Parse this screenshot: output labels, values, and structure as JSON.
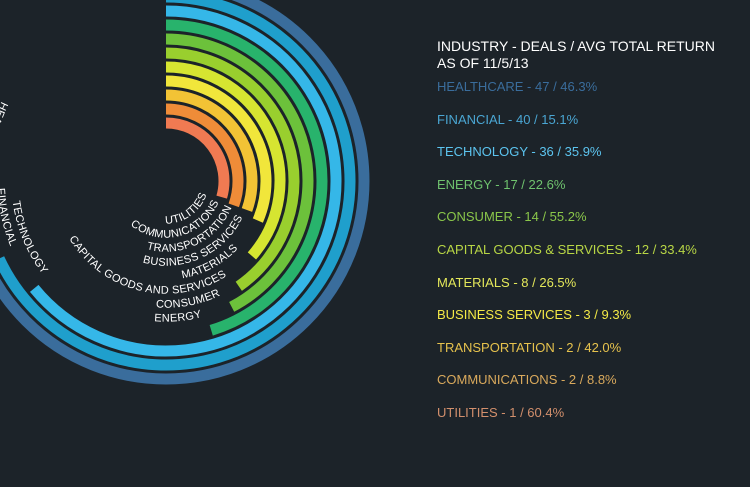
{
  "chart_data": {
    "type": "radial-bar",
    "title": "INDUSTRY - DEALS /  AVG TOTAL RETURN",
    "subtitle": "AS OF 11/5/13",
    "categories": [
      "HEALTHCARE",
      "FINANCIAL",
      "TECHNOLOGY",
      "ENERGY",
      "CONSUMER",
      "CAPITAL GOODS & SERVICES",
      "MATERIALS",
      "BUSINESS SERVICES",
      "TRANSPORTATION",
      "COMMUNICATIONS",
      "UTILITIES"
    ],
    "series": [
      {
        "values": [
          47,
          40,
          36,
          17,
          14,
          12,
          8,
          3,
          2,
          2,
          1
        ]
      },
      {
        "values": [
          46.3,
          15.1,
          35.9,
          22.6,
          55.2,
          33.4,
          26.5,
          9.3,
          42.0,
          8.8,
          60.4
        ]
      }
    ],
    "arc_labels": [
      "HEALTHCARE",
      "FINANCIAL",
      "TECHNOLOGY",
      "ENERGY",
      "CONSUMER",
      "CAPITAL GOODS AND SERVICES",
      "MATERIALS",
      "BUSINESS SERVICES",
      "TRANSPORTATION",
      "COMMUNICATIONS",
      "UTILITIES"
    ],
    "legend_entries": [
      "HEALTHCARE - 47 / 46.3%",
      "FINANCIAL - 40 / 15.1%",
      "TECHNOLOGY - 36 / 35.9%",
      "ENERGY - 17 / 22.6%",
      "CONSUMER - 14 / 55.2%",
      "CAPITAL GOODS & SERVICES - 12 / 33.4%",
      "MATERIALS - 8 / 26.5%",
      "BUSINESS SERVICES - 3 / 9.3%",
      "TRANSPORTATION - 2 / 42.0%",
      "COMMUNICATIONS - 2 / 8.8%",
      "UTILITIES - 1 / 60.4%"
    ],
    "colors": [
      "#3a6d9c",
      "#1f9fcc",
      "#35b7e8",
      "#28b36c",
      "#6cc13b",
      "#99cf2e",
      "#d6e531",
      "#f1e63b",
      "#f2c335",
      "#ef8c38",
      "#f07a52"
    ],
    "legend_colors": [
      "#3a6d9c",
      "#4aa6d3",
      "#5cc4ef",
      "#6fc36e",
      "#8ac64a",
      "#b8d645",
      "#e4e85a",
      "#f4ea46",
      "#e6c24d",
      "#d9a95c",
      "#d28f6c"
    ],
    "legend_placement": "right",
    "grid": false
  }
}
